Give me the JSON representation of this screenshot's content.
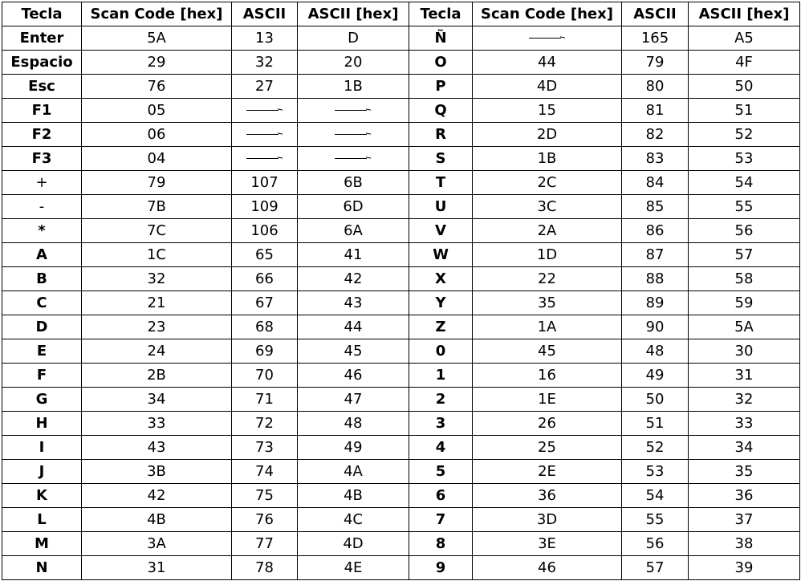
{
  "headers": [
    "Tecla",
    "Scan Code [hex]",
    "ASCII",
    "ASCII [hex]",
    "Tecla",
    "Scan Code [hex]",
    "ASCII",
    "ASCII [hex]"
  ],
  "rows": [
    [
      [
        "Enter",
        "5A",
        "13",
        "D"
      ],
      [
        "Ñ",
        "—",
        "165",
        "A5"
      ]
    ],
    [
      [
        "Espacio",
        "29",
        "32",
        "20"
      ],
      [
        "O",
        "44",
        "79",
        "4F"
      ]
    ],
    [
      [
        "Esc",
        "76",
        "27",
        "1B"
      ],
      [
        "P",
        "4D",
        "80",
        "50"
      ]
    ],
    [
      [
        "F1",
        "05",
        "—",
        "—"
      ],
      [
        "Q",
        "15",
        "81",
        "51"
      ]
    ],
    [
      [
        "F2",
        "06",
        "—",
        "—"
      ],
      [
        "R",
        "2D",
        "82",
        "52"
      ]
    ],
    [
      [
        "F3",
        "04",
        "—",
        "—"
      ],
      [
        "S",
        "1B",
        "83",
        "53"
      ]
    ],
    [
      [
        "+",
        "79",
        "107",
        "6B"
      ],
      [
        "T",
        "2C",
        "84",
        "54"
      ]
    ],
    [
      [
        "-",
        "7B",
        "109",
        "6D"
      ],
      [
        "U",
        "3C",
        "85",
        "55"
      ]
    ],
    [
      [
        "*",
        "7C",
        "106",
        "6A"
      ],
      [
        "V",
        "2A",
        "86",
        "56"
      ]
    ],
    [
      [
        "A",
        "1C",
        "65",
        "41"
      ],
      [
        "W",
        "1D",
        "87",
        "57"
      ]
    ],
    [
      [
        "B",
        "32",
        "66",
        "42"
      ],
      [
        "X",
        "22",
        "88",
        "58"
      ]
    ],
    [
      [
        "C",
        "21",
        "67",
        "43"
      ],
      [
        "Y",
        "35",
        "89",
        "59"
      ]
    ],
    [
      [
        "D",
        "23",
        "68",
        "44"
      ],
      [
        "Z",
        "1A",
        "90",
        "5A"
      ]
    ],
    [
      [
        "E",
        "24",
        "69",
        "45"
      ],
      [
        "0",
        "45",
        "48",
        "30"
      ]
    ],
    [
      [
        "F",
        "2B",
        "70",
        "46"
      ],
      [
        "1",
        "16",
        "49",
        "31"
      ]
    ],
    [
      [
        "G",
        "34",
        "71",
        "47"
      ],
      [
        "2",
        "1E",
        "50",
        "32"
      ]
    ],
    [
      [
        "H",
        "33",
        "72",
        "48"
      ],
      [
        "3",
        "26",
        "51",
        "33"
      ]
    ],
    [
      [
        "I",
        "43",
        "73",
        "49"
      ],
      [
        "4",
        "25",
        "52",
        "34"
      ]
    ],
    [
      [
        "J",
        "3B",
        "74",
        "4A"
      ],
      [
        "5",
        "2E",
        "53",
        "35"
      ]
    ],
    [
      [
        "K",
        "42",
        "75",
        "4B"
      ],
      [
        "6",
        "36",
        "54",
        "36"
      ]
    ],
    [
      [
        "L",
        "4B",
        "76",
        "4C"
      ],
      [
        "7",
        "3D",
        "55",
        "37"
      ]
    ],
    [
      [
        "M",
        "3A",
        "77",
        "4D"
      ],
      [
        "8",
        "3E",
        "56",
        "38"
      ]
    ],
    [
      [
        "N",
        "31",
        "78",
        "4E"
      ],
      [
        "9",
        "46",
        "57",
        "39"
      ]
    ]
  ]
}
